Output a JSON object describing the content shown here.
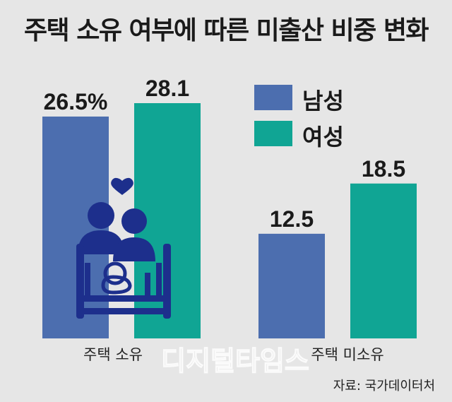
{
  "title": "주택 소유 여부에 따른 미출산 비중 변화",
  "legend": [
    {
      "label": "남성",
      "color": "#4c6eaf"
    },
    {
      "label": "여성",
      "color": "#10a594"
    }
  ],
  "chart_data": {
    "type": "bar",
    "title": "주택 소유 여부에 따른 미출산 비중 변화",
    "categories": [
      "주택 소유",
      "주택 미소유"
    ],
    "series": [
      {
        "name": "남성",
        "values": [
          26.5,
          12.5
        ],
        "labels": [
          "26.5%",
          "12.5"
        ],
        "color": "#4c6eaf"
      },
      {
        "name": "여성",
        "values": [
          28.1,
          18.5
        ],
        "labels": [
          "28.1",
          "18.5"
        ],
        "color": "#10a594"
      }
    ],
    "xlabel": "",
    "ylabel": "",
    "ylim": [
      0,
      28.1
    ],
    "grid": false,
    "legend_position": "top-right"
  },
  "icon": {
    "name": "family-crib-icon",
    "color": "#1d2f8c"
  },
  "watermark": {
    "text": "디지털타임스"
  },
  "source": "자료: 국가데이터처"
}
